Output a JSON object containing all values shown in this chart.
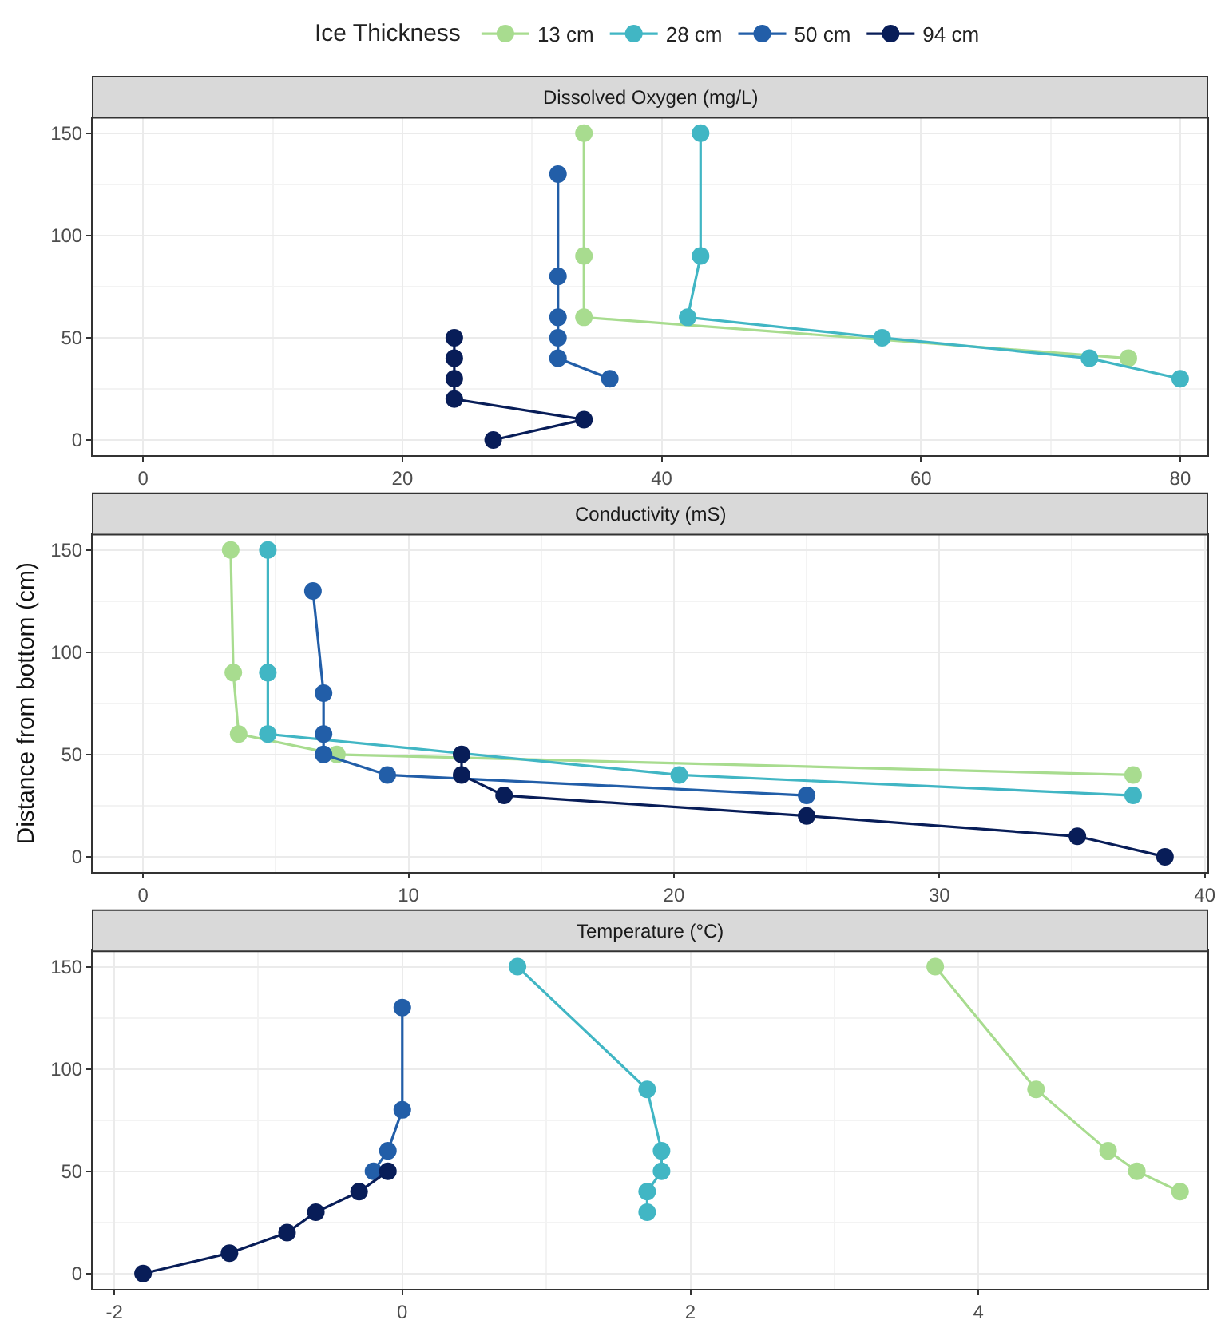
{
  "chart_data": [
    {
      "type": "line",
      "title": "Dissolved Oxygen (mg/L)",
      "legend_title": "Ice Thickness",
      "legend": "top",
      "grid": true,
      "marker": "circle",
      "xlim": [
        -3.9,
        82.1
      ],
      "xticks": [
        0,
        20,
        40,
        60,
        80
      ],
      "ylim": [
        -7.5,
        157.5
      ],
      "yticks": [
        0,
        50,
        100,
        150
      ],
      "series": [
        {
          "name": "13 cm",
          "color": "#a8dc8f",
          "x": [
            34,
            34,
            34,
            76
          ],
          "values": [
            150,
            90,
            60,
            40
          ]
        },
        {
          "name": "28 cm",
          "color": "#41b6c4",
          "x": [
            43,
            43,
            42,
            57,
            73,
            80
          ],
          "values": [
            150,
            90,
            60,
            50,
            40,
            30
          ]
        },
        {
          "name": "50 cm",
          "color": "#225ea8",
          "x": [
            32,
            32,
            32,
            32,
            32,
            36
          ],
          "values": [
            130,
            80,
            60,
            50,
            40,
            30
          ]
        },
        {
          "name": "94 cm",
          "color": "#081d58",
          "x": [
            24,
            24,
            24,
            24,
            34,
            27
          ],
          "values": [
            50,
            40,
            30,
            20,
            10,
            0
          ]
        }
      ]
    },
    {
      "type": "line",
      "title": "Conductivity (mS)",
      "ylabel": "Distance from bottom (cm)",
      "grid": true,
      "marker": "circle",
      "xlim": [
        -1.9,
        40.1
      ],
      "xticks": [
        0,
        10,
        20,
        30,
        40
      ],
      "ylim": [
        -7.5,
        157.5
      ],
      "yticks": [
        0,
        50,
        100,
        150
      ],
      "series": [
        {
          "color": "#a8dc8f",
          "x": [
            3.3,
            3.4,
            3.6,
            7.3,
            37.3
          ],
          "values": [
            150,
            90,
            60,
            50,
            40
          ]
        },
        {
          "color": "#41b6c4",
          "x": [
            4.7,
            4.7,
            4.7,
            20.2,
            37.3
          ],
          "values": [
            150,
            90,
            60,
            40,
            30
          ]
        },
        {
          "color": "#225ea8",
          "x": [
            6.4,
            6.8,
            6.8,
            6.8,
            9.2,
            25
          ],
          "values": [
            130,
            80,
            60,
            50,
            40,
            30
          ]
        },
        {
          "color": "#081d58",
          "x": [
            12,
            12,
            13.6,
            25,
            35.2,
            38.5
          ],
          "values": [
            50,
            40,
            30,
            20,
            10,
            0
          ]
        }
      ]
    },
    {
      "type": "line",
      "title": "Temperature (°C)",
      "grid": true,
      "marker": "circle",
      "xlim": [
        -2.15,
        5.59
      ],
      "xticks": [
        -2,
        0,
        2,
        4
      ],
      "ylim": [
        -7.5,
        157.5
      ],
      "yticks": [
        0,
        50,
        100,
        150
      ],
      "series": [
        {
          "color": "#a8dc8f",
          "x": [
            3.7,
            4.4,
            4.9,
            5.1,
            5.4
          ],
          "values": [
            150,
            90,
            60,
            50,
            40
          ]
        },
        {
          "color": "#41b6c4",
          "x": [
            0.8,
            1.7,
            1.8,
            1.8,
            1.7,
            1.7
          ],
          "values": [
            150,
            90,
            60,
            50,
            40,
            30
          ]
        },
        {
          "color": "#225ea8",
          "x": [
            0,
            0,
            -0.1,
            -0.2
          ],
          "values": [
            130,
            80,
            60,
            50
          ]
        },
        {
          "color": "#081d58",
          "x": [
            -0.1,
            -0.3,
            -0.6,
            -0.8,
            -1.2,
            -1.8
          ],
          "values": [
            50,
            40,
            30,
            20,
            10,
            0
          ]
        }
      ]
    }
  ]
}
